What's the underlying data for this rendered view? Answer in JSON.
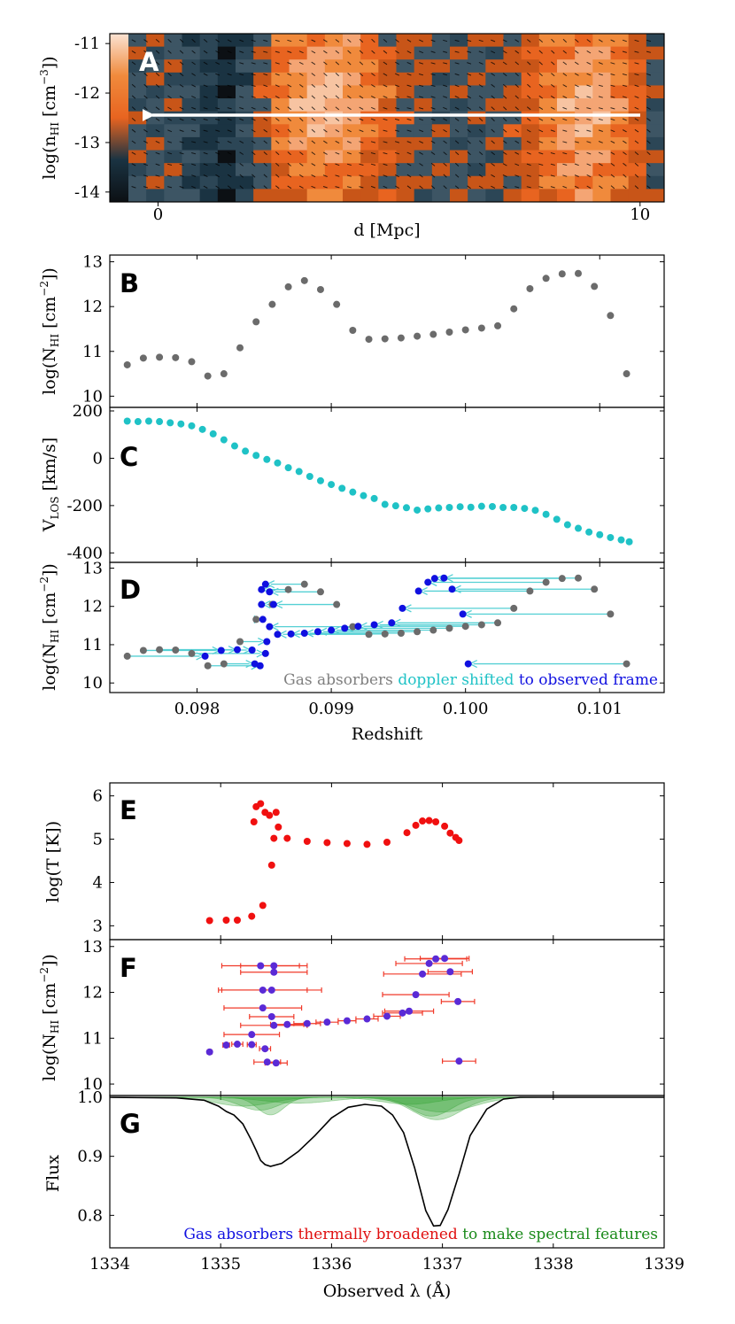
{
  "chart_data": [
    {
      "panel": "A",
      "type": "heatmap",
      "xlabel": "d [Mpc]",
      "xlim": [
        -1,
        10.5
      ],
      "xticks": [
        "0",
        "10"
      ],
      "ylabel_main": "log(n",
      "ylabel_sub": "HI",
      "ylabel_rest": " [cm",
      "ylabel_sup": "−3",
      "ylabel_end": "])",
      "ylim": [
        -14.2,
        -10.8
      ],
      "yticks": [
        "-11",
        "-12",
        "-13",
        "-14"
      ],
      "annotation": "white sightline arrow from d=10 to d=0 at log(n_HI)=-12.45",
      "colorbar_colors": [
        "#fbe3d3",
        "#f08a3c",
        "#e86420",
        "#1a3342",
        "#0c1014"
      ]
    },
    {
      "panel": "B",
      "type": "scatter",
      "ylabel_main": "log(N",
      "ylabel_sub": "HI",
      "ylabel_rest": " [cm",
      "ylabel_sup": "−2",
      "ylabel_end": "])",
      "ylim": [
        9.75,
        13.15
      ],
      "yticks": [
        "10",
        "11",
        "12",
        "13"
      ],
      "xlim": [
        0.09735,
        0.10148
      ],
      "color": "#6b6b6b",
      "x": [
        0.09748,
        0.0976,
        0.09772,
        0.09784,
        0.09796,
        0.09808,
        0.0982,
        0.09832,
        0.09844,
        0.09856,
        0.09868,
        0.0988,
        0.09892,
        0.09904,
        0.09916,
        0.09928,
        0.0994,
        0.09952,
        0.09964,
        0.09976,
        0.09988,
        0.1,
        0.10012,
        0.10024,
        0.10036,
        0.10048,
        0.1006,
        0.10072,
        0.10084,
        0.10096,
        0.10108,
        0.1012
      ],
      "y": [
        10.7,
        10.85,
        10.87,
        10.86,
        10.77,
        10.45,
        10.5,
        11.08,
        11.66,
        12.05,
        12.44,
        12.58,
        12.38,
        12.05,
        11.47,
        11.27,
        11.28,
        11.3,
        11.34,
        11.38,
        11.43,
        11.48,
        11.52,
        11.57,
        11.95,
        12.4,
        12.63,
        12.73,
        12.74,
        12.45,
        11.8,
        10.5
      ]
    },
    {
      "panel": "C",
      "type": "scatter",
      "ylabel_main": "V",
      "ylabel_sub": "LOS",
      "ylabel_rest": " [km/s]",
      "ylim": [
        -440,
        215
      ],
      "yticks": [
        "200",
        "0",
        "-200",
        "-400"
      ],
      "xlim": [
        0.09735,
        0.10148
      ],
      "color": "#1fc2c6",
      "x": [
        0.09748,
        0.09756,
        0.09764,
        0.09772,
        0.0978,
        0.09788,
        0.09796,
        0.09804,
        0.09812,
        0.0982,
        0.09828,
        0.09836,
        0.09844,
        0.09852,
        0.0986,
        0.09868,
        0.09876,
        0.09884,
        0.09892,
        0.099,
        0.09908,
        0.09916,
        0.09924,
        0.09932,
        0.0994,
        0.09948,
        0.09956,
        0.09964,
        0.09972,
        0.0998,
        0.09988,
        0.09996,
        0.10004,
        0.10012,
        0.1002,
        0.10028,
        0.10036,
        0.10044,
        0.10052,
        0.1006,
        0.10068,
        0.10076,
        0.10084,
        0.10092,
        0.101,
        0.10108,
        0.10116,
        0.10122
      ],
      "y": [
        157,
        155,
        157,
        155,
        150,
        145,
        137,
        122,
        103,
        78,
        52,
        30,
        12,
        -5,
        -20,
        -40,
        -56,
        -77,
        -95,
        -111,
        -127,
        -143,
        -158,
        -170,
        -195,
        -201,
        -209,
        -219,
        -214,
        -210,
        -208,
        -205,
        -207,
        -203,
        -204,
        -208,
        -208,
        -212,
        -220,
        -237,
        -258,
        -281,
        -296,
        -312,
        -323,
        -335,
        -345,
        -353
      ]
    },
    {
      "panel": "D",
      "type": "scatter",
      "ylabel_main": "log(N",
      "ylabel_sub": "HI",
      "ylabel_rest": " [cm",
      "ylabel_sup": "−2",
      "ylabel_end": "])",
      "ylim": [
        9.75,
        13.15
      ],
      "yticks": [
        "10",
        "11",
        "12",
        "13"
      ],
      "xlabel": "Redshift",
      "xlim": [
        0.09735,
        0.10148
      ],
      "xticks": [
        "0.098",
        "0.099",
        "0.100",
        "0.101"
      ],
      "legend": [
        {
          "text": "Gas absorbers ",
          "color": "#808080"
        },
        {
          "text": "doppler shifted ",
          "color": "#1fc2c6"
        },
        {
          "text": "to observed frame",
          "color": "#1010e0"
        }
      ],
      "gas_color": "#6b6b6b",
      "observed_color": "#1010e0",
      "arrow_color": "#55d0d4",
      "gas_x": [
        0.09748,
        0.0976,
        0.09772,
        0.09784,
        0.09796,
        0.09808,
        0.0982,
        0.09832,
        0.09844,
        0.09856,
        0.09868,
        0.0988,
        0.09892,
        0.09904,
        0.09916,
        0.09928,
        0.0994,
        0.09952,
        0.09964,
        0.09976,
        0.09988,
        0.1,
        0.10012,
        0.10024,
        0.10036,
        0.10048,
        0.1006,
        0.10072,
        0.10084,
        0.10096,
        0.10108,
        0.1012
      ],
      "obs_x": [
        0.09806,
        0.09818,
        0.0983,
        0.09841,
        0.09851,
        0.09847,
        0.09843,
        0.09852,
        0.09849,
        0.09848,
        0.09848,
        0.09851,
        0.09854,
        0.09857,
        0.09854,
        0.0986,
        0.0987,
        0.0988,
        0.0989,
        0.099,
        0.0991,
        0.0992,
        0.09932,
        0.09945,
        0.09953,
        0.09965,
        0.09972,
        0.09977,
        0.09984,
        0.0999,
        0.09998,
        0.10002
      ],
      "y": [
        10.7,
        10.85,
        10.87,
        10.86,
        10.77,
        10.45,
        10.5,
        11.08,
        11.66,
        12.05,
        12.44,
        12.58,
        12.38,
        12.05,
        11.47,
        11.27,
        11.28,
        11.3,
        11.34,
        11.38,
        11.43,
        11.48,
        11.52,
        11.57,
        11.95,
        12.4,
        12.63,
        12.73,
        12.74,
        12.45,
        11.8,
        10.5
      ]
    },
    {
      "panel": "E",
      "type": "scatter",
      "ylabel": "log(T [K])",
      "ylim": [
        2.68,
        6.3
      ],
      "yticks": [
        "3",
        "4",
        "5",
        "6"
      ],
      "xlim": [
        1334,
        1339
      ],
      "color": "#f01010",
      "x": [
        1334.9,
        1335.05,
        1335.15,
        1335.28,
        1335.38,
        1335.46,
        1335.48,
        1335.3,
        1335.32,
        1335.36,
        1335.4,
        1335.44,
        1335.5,
        1335.52,
        1335.6,
        1335.78,
        1335.96,
        1336.14,
        1336.32,
        1336.5,
        1336.68,
        1336.76,
        1336.82,
        1336.88,
        1336.94,
        1337.02,
        1337.07,
        1337.12,
        1337.15
      ],
      "y": [
        3.12,
        3.13,
        3.13,
        3.22,
        3.47,
        4.4,
        5.02,
        5.4,
        5.75,
        5.82,
        5.62,
        5.55,
        5.62,
        5.28,
        5.02,
        4.95,
        4.92,
        4.9,
        4.88,
        4.93,
        5.15,
        5.32,
        5.42,
        5.43,
        5.4,
        5.3,
        5.14,
        5.04,
        4.97
      ]
    },
    {
      "panel": "F",
      "type": "scatter",
      "ylabel_main": "log(N",
      "ylabel_sub": "HI",
      "ylabel_rest": " [cm",
      "ylabel_sup": "−2",
      "ylabel_end": "])",
      "ylim": [
        9.75,
        13.15
      ],
      "yticks": [
        "10",
        "11",
        "12",
        "13"
      ],
      "xlim": [
        1334,
        1339
      ],
      "point_color": "#5a2ad6",
      "error_color": "#f03a2a",
      "x": [
        1334.9,
        1335.05,
        1335.15,
        1335.28,
        1335.28,
        1335.38,
        1335.46,
        1335.48,
        1335.48,
        1335.6,
        1335.78,
        1335.96,
        1336.14,
        1336.32,
        1336.5,
        1336.64,
        1336.7,
        1336.76,
        1336.82,
        1336.88,
        1336.94,
        1337.02,
        1337.07,
        1337.14,
        1337.15,
        1335.4,
        1335.42,
        1335.38,
        1335.36,
        1335.46,
        1335.5,
        1335.48
      ],
      "y": [
        10.7,
        10.85,
        10.87,
        10.86,
        11.08,
        11.66,
        12.05,
        12.44,
        12.58,
        11.3,
        11.32,
        11.35,
        11.38,
        11.42,
        11.48,
        11.55,
        11.59,
        11.95,
        12.4,
        12.63,
        12.73,
        12.74,
        12.45,
        11.8,
        10.5,
        10.77,
        10.48,
        12.05,
        12.58,
        11.47,
        10.46,
        11.28
      ],
      "xerr": [
        0.02,
        0.03,
        0.05,
        0.04,
        0.25,
        0.35,
        0.45,
        0.3,
        0.3,
        0.15,
        0.12,
        0.1,
        0.08,
        0.1,
        0.12,
        0.18,
        0.22,
        0.3,
        0.35,
        0.3,
        0.28,
        0.22,
        0.2,
        0.15,
        0.15,
        0.05,
        0.12,
        0.4,
        0.35,
        0.2,
        0.1,
        0.3
      ]
    },
    {
      "panel": "G",
      "type": "area",
      "ylabel": "Flux",
      "xlabel": "Observed λ (Å)",
      "ylim": [
        0.745,
        1.003
      ],
      "yticks": [
        "1.0",
        "0.9",
        "0.8"
      ],
      "xlim": [
        1334,
        1339
      ],
      "xticks": [
        "1334",
        "1335",
        "1336",
        "1337",
        "1338",
        "1339"
      ],
      "legend": [
        {
          "text": "Gas absorbers ",
          "color": "#1010e0"
        },
        {
          "text": "thermally broadened ",
          "color": "#e01010"
        },
        {
          "text": "to make spectral features",
          "color": "#1a8a1a"
        }
      ],
      "line_color": "#000000",
      "fill_color": "#2ea02e",
      "absorbers": [
        {
          "center": 1335.35,
          "depth": 0.022,
          "sigma": 0.18
        },
        {
          "center": 1335.45,
          "depth": 0.03,
          "sigma": 0.12
        },
        {
          "center": 1335.2,
          "depth": 0.015,
          "sigma": 0.25
        },
        {
          "center": 1336.95,
          "depth": 0.038,
          "sigma": 0.22
        },
        {
          "center": 1336.9,
          "depth": 0.032,
          "sigma": 0.18
        },
        {
          "center": 1337.0,
          "depth": 0.025,
          "sigma": 0.28
        },
        {
          "center": 1336.7,
          "depth": 0.012,
          "sigma": 0.25
        },
        {
          "center": 1335.7,
          "depth": 0.01,
          "sigma": 0.3
        }
      ],
      "flux_line": [
        [
          1334,
          1.0
        ],
        [
          1334.6,
          0.999
        ],
        [
          1334.85,
          0.995
        ],
        [
          1334.98,
          0.985
        ],
        [
          1335.05,
          0.976
        ],
        [
          1335.12,
          0.97
        ],
        [
          1335.2,
          0.955
        ],
        [
          1335.27,
          0.93
        ],
        [
          1335.32,
          0.91
        ],
        [
          1335.36,
          0.893
        ],
        [
          1335.4,
          0.886
        ],
        [
          1335.45,
          0.883
        ],
        [
          1335.55,
          0.888
        ],
        [
          1335.7,
          0.908
        ],
        [
          1335.85,
          0.935
        ],
        [
          1336.0,
          0.965
        ],
        [
          1336.15,
          0.983
        ],
        [
          1336.3,
          0.988
        ],
        [
          1336.45,
          0.985
        ],
        [
          1336.55,
          0.97
        ],
        [
          1336.65,
          0.94
        ],
        [
          1336.75,
          0.88
        ],
        [
          1336.85,
          0.808
        ],
        [
          1336.92,
          0.782
        ],
        [
          1336.98,
          0.783
        ],
        [
          1337.05,
          0.81
        ],
        [
          1337.15,
          0.87
        ],
        [
          1337.25,
          0.935
        ],
        [
          1337.4,
          0.98
        ],
        [
          1337.55,
          0.997
        ],
        [
          1337.7,
          1.0
        ],
        [
          1339,
          1.0
        ]
      ]
    }
  ]
}
